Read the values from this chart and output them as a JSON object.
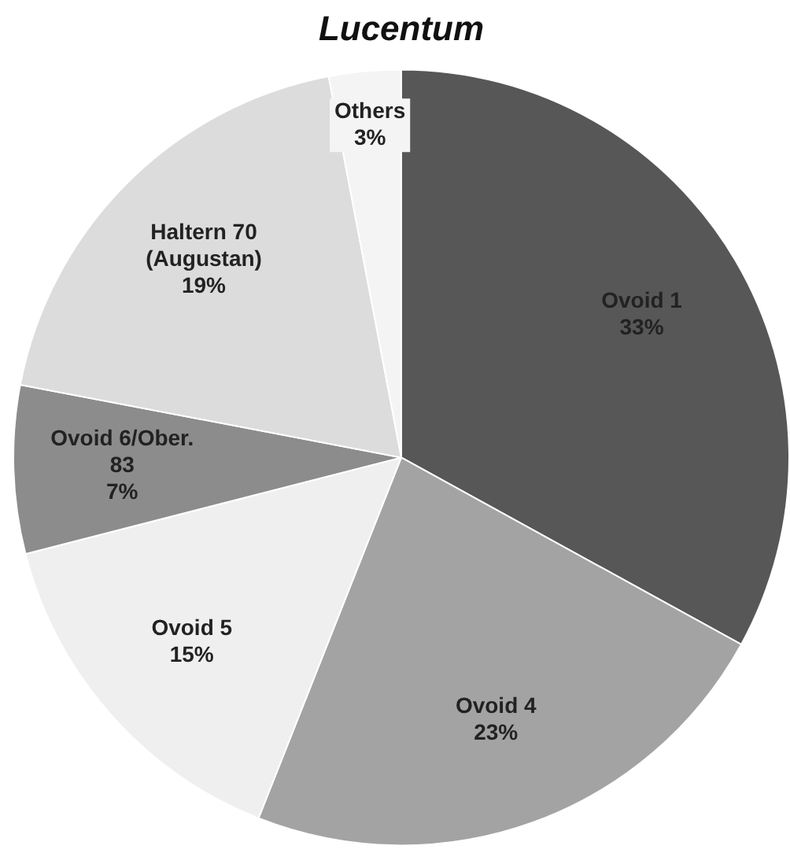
{
  "chart_data": {
    "type": "pie",
    "title": "Lucentum",
    "categories": [
      "Ovoid 1",
      "Ovoid 4",
      "Ovoid 5",
      "Ovoid 6/Ober. 83",
      "Haltern 70 (Augustan)",
      "Others"
    ],
    "values": [
      33,
      23,
      15,
      7,
      19,
      3
    ],
    "value_labels": [
      "33%",
      "23%",
      "15%",
      "7%",
      "19%",
      "3%"
    ],
    "colors": [
      "#575757",
      "#a3a3a3",
      "#efefef",
      "#8c8c8c",
      "#dcdcdc",
      "#f4f4f4"
    ],
    "legend": false
  }
}
